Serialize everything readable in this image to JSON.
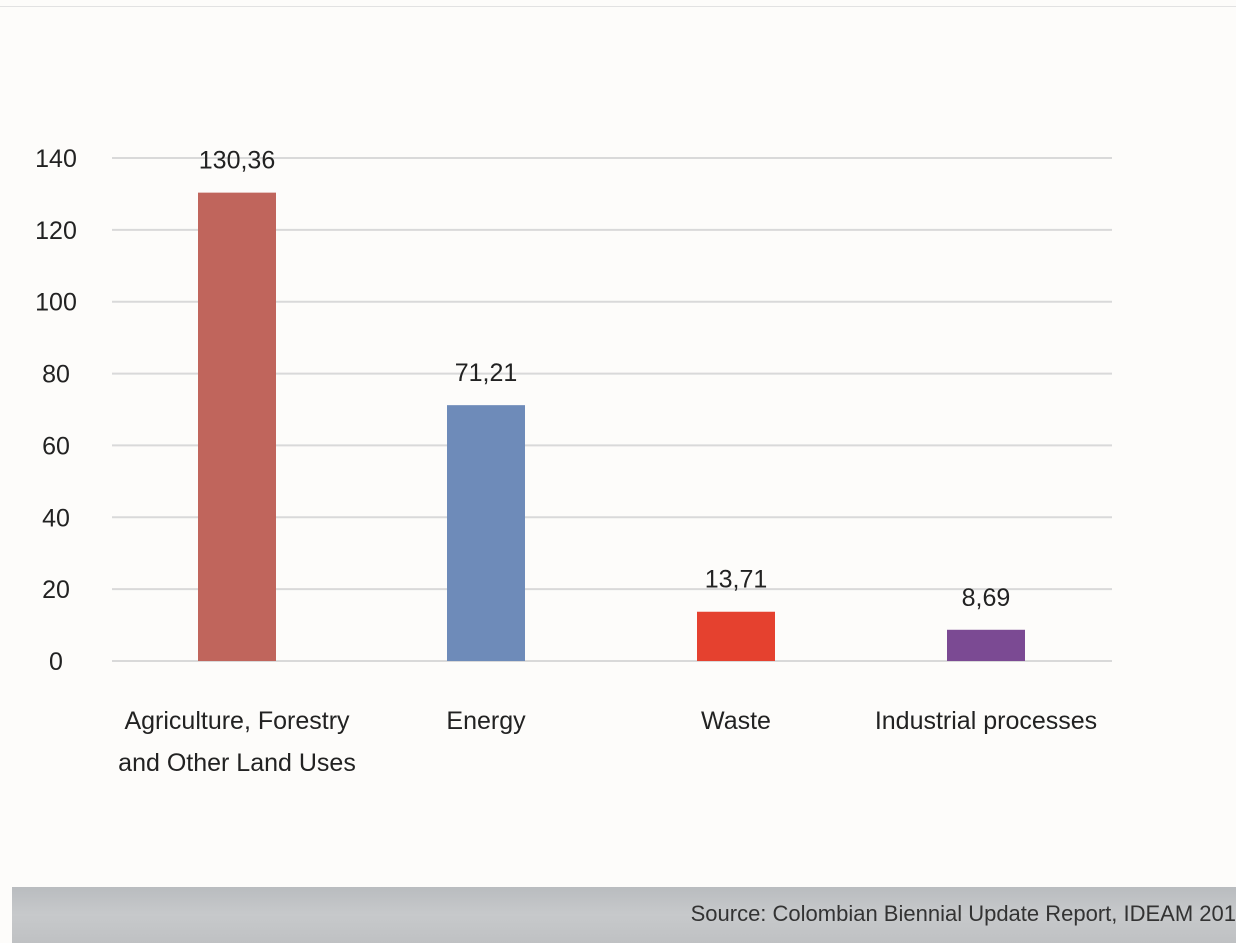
{
  "chart_data": {
    "type": "bar",
    "categories": [
      [
        "Agriculture, Forestry",
        "and Other Land Uses"
      ],
      [
        "Energy"
      ],
      [
        "Waste"
      ],
      [
        "Industrial processes"
      ]
    ],
    "values": [
      130.36,
      71.21,
      13.71,
      8.69
    ],
    "data_labels": [
      "130,36",
      "71,21",
      "13,71",
      "8,69"
    ],
    "bar_colors": [
      "#c0655c",
      "#6e8bb9",
      "#e5412f",
      "#7b4a93"
    ],
    "ylim": [
      0,
      140
    ],
    "yticks": [
      0,
      20,
      40,
      60,
      80,
      100,
      120,
      140
    ],
    "grid": true,
    "legend": "none"
  },
  "footer": {
    "source": "Source: Colombian Biennial Update Report, IDEAM 201"
  },
  "colors": {
    "gridline": "#d9d9d9",
    "footer_bar": "#c4c6c8"
  }
}
